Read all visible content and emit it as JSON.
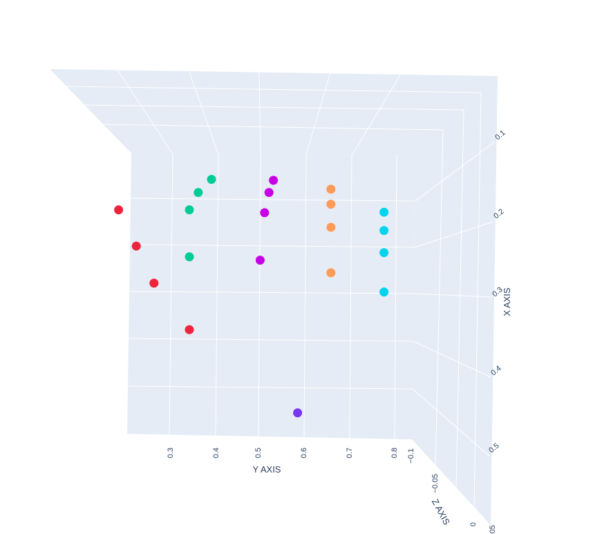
{
  "chart_data": {
    "type": "scatter",
    "subtype": "scatter3d",
    "axes": {
      "x": {
        "title": "X AXIS",
        "ticks": [
          "0.1",
          "0.2",
          "0.3",
          "0.4",
          "0.5"
        ]
      },
      "y": {
        "title": "Y AXIS",
        "ticks": [
          "0.3",
          "0.4",
          "0.5",
          "0.6",
          "0.7",
          "0.8"
        ]
      },
      "z": {
        "title": "Z AXIS",
        "ticks": [
          "−0.1",
          "−0.05",
          "0",
          "0.05"
        ]
      }
    },
    "grid": true,
    "background": "#e5ecf6",
    "series": [
      {
        "color": "#ef233c",
        "points": [
          {
            "x": 0.185,
            "y": 0.24,
            "z": 0.0
          },
          {
            "x": 0.262,
            "y": 0.28,
            "z": 0.0
          },
          {
            "x": 0.341,
            "y": 0.32,
            "z": 0.0
          },
          {
            "x": 0.44,
            "y": 0.4,
            "z": 0.0
          }
        ]
      },
      {
        "color": "#00cc96",
        "points": [
          {
            "x": 0.12,
            "y": 0.45,
            "z": 0.0
          },
          {
            "x": 0.148,
            "y": 0.42,
            "z": 0.0
          },
          {
            "x": 0.185,
            "y": 0.4,
            "z": 0.0
          },
          {
            "x": 0.285,
            "y": 0.4,
            "z": 0.0
          }
        ]
      },
      {
        "color": "#c700e6",
        "points": [
          {
            "x": 0.122,
            "y": 0.59,
            "z": 0.0
          },
          {
            "x": 0.148,
            "y": 0.58,
            "z": 0.0
          },
          {
            "x": 0.191,
            "y": 0.57,
            "z": 0.0
          },
          {
            "x": 0.292,
            "y": 0.56,
            "z": 0.0
          }
        ]
      },
      {
        "color": "#ff9a57",
        "points": [
          {
            "x": 0.141,
            "y": 0.72,
            "z": 0.0
          },
          {
            "x": 0.173,
            "y": 0.72,
            "z": 0.0
          },
          {
            "x": 0.222,
            "y": 0.72,
            "z": 0.0
          },
          {
            "x": 0.319,
            "y": 0.72,
            "z": 0.0
          }
        ]
      },
      {
        "color": "#00d3ee",
        "points": [
          {
            "x": 0.19,
            "y": 0.84,
            "z": 0.0
          },
          {
            "x": 0.229,
            "y": 0.84,
            "z": 0.0
          },
          {
            "x": 0.276,
            "y": 0.84,
            "z": 0.0
          },
          {
            "x": 0.36,
            "y": 0.84,
            "z": 0.0
          }
        ]
      },
      {
        "color": "#7a36ee",
        "points": [
          {
            "x": 0.62,
            "y": 0.64,
            "z": -0.01
          }
        ]
      }
    ]
  }
}
